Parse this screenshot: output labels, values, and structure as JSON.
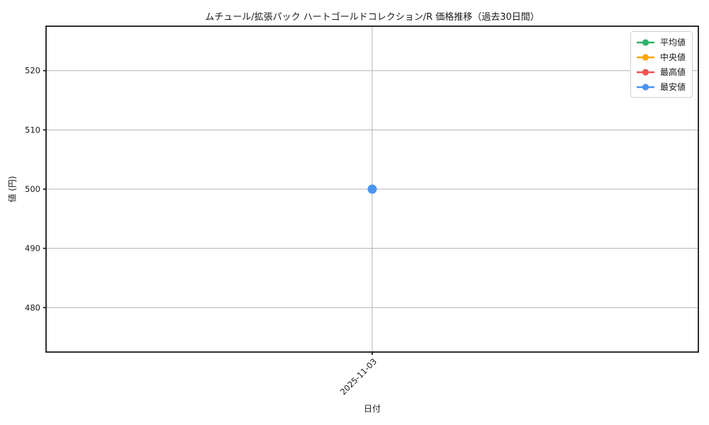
{
  "chart_data": {
    "type": "line",
    "title": "ムチュール/拡張パック ハートゴールドコレクション/R 価格推移（過去30日間）",
    "xlabel": "日付",
    "ylabel": "値 (円)",
    "x": [
      "2025-11-03"
    ],
    "series": [
      {
        "name": "平均値",
        "color": "#2fb36b",
        "values": [
          null
        ]
      },
      {
        "name": "中央値",
        "color": "#ffa40b",
        "values": [
          null
        ]
      },
      {
        "name": "最高値",
        "color": "#f15353",
        "values": [
          null
        ]
      },
      {
        "name": "最安値",
        "color": "#4a94ee",
        "values": [
          500
        ]
      }
    ],
    "yticks": [
      480,
      490,
      500,
      510,
      520
    ],
    "ylim": [
      472.5,
      527.5
    ],
    "grid": true,
    "legend_position": "upper-right",
    "colors": {
      "grid": "#b3b3b3",
      "spine": "#1a1a1a",
      "text": "#1a1a1a",
      "legend_border": "#cfcfcf"
    }
  }
}
